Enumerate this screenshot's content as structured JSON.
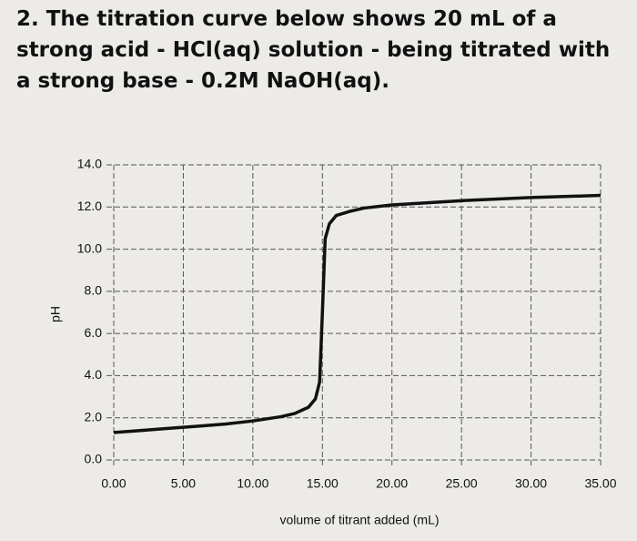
{
  "question": "2. The titration curve below shows 20 mL of a strong acid - HCl(aq) solution - being titrated with a strong base - 0.2M NaOH(aq).",
  "chart_data": {
    "type": "line",
    "x_label": "volume of titrant added (mL)",
    "y_label": "pH",
    "color": "#111111",
    "grid": true,
    "series": [
      {
        "name": "pH",
        "color": "#111111",
        "x": [
          0,
          2,
          4,
          6,
          8,
          10,
          12,
          13,
          14,
          14.5,
          14.8,
          15,
          15.2,
          15.5,
          16,
          17,
          18,
          20,
          25,
          30,
          35
        ],
        "values": [
          1.3,
          1.4,
          1.5,
          1.6,
          1.7,
          1.85,
          2.05,
          2.2,
          2.5,
          2.9,
          3.7,
          7,
          10.5,
          11.2,
          11.6,
          11.8,
          11.95,
          12.1,
          12.3,
          12.45,
          12.55
        ]
      }
    ],
    "xlim": [
      0,
      35
    ],
    "xticks": [
      {
        "value": 0,
        "label": "0.00"
      },
      {
        "value": 5,
        "label": "5.00"
      },
      {
        "value": 10,
        "label": "10.00"
      },
      {
        "value": 15,
        "label": "15.00"
      },
      {
        "value": 20,
        "label": "20.00"
      },
      {
        "value": 25,
        "label": "25.00"
      },
      {
        "value": 30,
        "label": "30.00"
      },
      {
        "value": 35,
        "label": "35.00"
      }
    ],
    "ylim": [
      0,
      14
    ],
    "yticks": [
      {
        "value": 0,
        "label": "0.0"
      },
      {
        "value": 2,
        "label": "2.0"
      },
      {
        "value": 4,
        "label": "4.0"
      },
      {
        "value": 6,
        "label": "6.0"
      },
      {
        "value": 8,
        "label": "8.0"
      },
      {
        "value": 10,
        "label": "10.0"
      },
      {
        "value": 12,
        "label": "12.0"
      },
      {
        "value": 14,
        "label": "14.0"
      }
    ]
  }
}
